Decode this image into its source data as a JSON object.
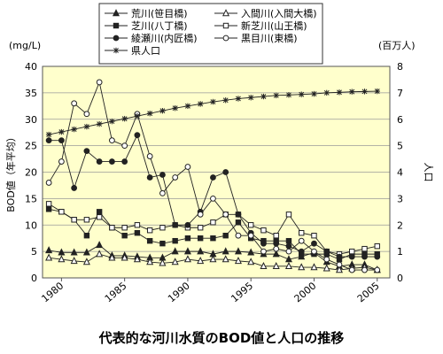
{
  "chart_data": {
    "type": "line",
    "title": "代表的な河川水質のBOD値と人口の推移",
    "y_left_unit": "(mg/L)",
    "y_left_label": "BOD値（年平均）",
    "y_left_ticks": [
      "0",
      "5",
      "10",
      "15",
      "20",
      "25",
      "30",
      "35",
      "40"
    ],
    "y_left_lim": [
      0,
      40
    ],
    "y_right_unit": "(百万人)",
    "y_right_label": "人口",
    "y_right_ticks": [
      "0",
      "1",
      "2",
      "3",
      "4",
      "5",
      "6",
      "7",
      "8"
    ],
    "y_right_lim": [
      0,
      8
    ],
    "x_ticks": [
      "1980",
      "1985",
      "1990",
      "1995",
      "2000",
      "2005"
    ],
    "x_lim": [
      1978.5,
      2006
    ],
    "years": [
      1979,
      1980,
      1981,
      1982,
      1983,
      1984,
      1985,
      1986,
      1987,
      1988,
      1989,
      1990,
      1991,
      1992,
      1993,
      1994,
      1995,
      1996,
      1997,
      1998,
      1999,
      2000,
      2001,
      2002,
      2003,
      2004,
      2005
    ],
    "series": [
      {
        "name": "荒川(笹目橋)",
        "axis": "left",
        "marker": "tri-filled",
        "values": [
          5.2,
          4.8,
          4.8,
          4.8,
          6.2,
          4.2,
          4.2,
          4.0,
          3.8,
          3.8,
          5.0,
          5.0,
          5.0,
          4.5,
          5.0,
          5.0,
          4.8,
          4.5,
          4.5,
          3.5,
          4.0,
          4.8,
          3.0,
          2.2,
          2.5,
          2.5,
          1.5
        ]
      },
      {
        "name": "入間川(入間大橋)",
        "axis": "left",
        "marker": "tri-open",
        "values": [
          3.8,
          3.5,
          3.2,
          3.0,
          4.5,
          3.8,
          3.8,
          3.5,
          3.0,
          2.8,
          3.0,
          3.5,
          3.2,
          3.5,
          3.5,
          3.2,
          3.0,
          2.2,
          2.2,
          2.2,
          2.0,
          2.0,
          1.8,
          1.5,
          1.8,
          2.0,
          1.5
        ]
      },
      {
        "name": "芝川(八丁橋)",
        "axis": "left",
        "marker": "sq-filled",
        "values": [
          13.0,
          12.5,
          11.0,
          8.0,
          12.5,
          9.5,
          8.0,
          8.5,
          7.0,
          6.5,
          7.0,
          7.5,
          7.5,
          7.5,
          8.0,
          10.5,
          7.5,
          7.0,
          7.0,
          7.0,
          4.5,
          4.5,
          4.5,
          3.5,
          4.5,
          4.5,
          4.5
        ]
      },
      {
        "name": "新芝川(山王橋)",
        "axis": "left",
        "marker": "sq-open",
        "values": [
          14.0,
          12.5,
          11.0,
          11.0,
          11.5,
          9.5,
          9.5,
          10.0,
          9.0,
          9.5,
          10.0,
          9.5,
          9.5,
          10.5,
          12.0,
          12.0,
          10.0,
          9.0,
          8.0,
          12.0,
          8.5,
          8.0,
          5.0,
          4.5,
          5.0,
          5.5,
          6.0
        ]
      },
      {
        "name": "綾瀬川(内匠橋)",
        "axis": "left",
        "marker": "circ-filled",
        "values": [
          26.0,
          26.0,
          17.0,
          24.0,
          22.0,
          22.0,
          22.0,
          27.0,
          19.0,
          19.5,
          10.0,
          10.0,
          12.5,
          19.0,
          20.0,
          12.0,
          8.5,
          6.5,
          6.5,
          6.0,
          5.0,
          6.5,
          5.0,
          4.0,
          4.0,
          4.0,
          4.0
        ]
      },
      {
        "name": "黒目川(東橋)",
        "axis": "left",
        "marker": "circ-open",
        "values": [
          18.0,
          22.0,
          33.0,
          31.0,
          37.0,
          26.0,
          25.0,
          31.0,
          23.0,
          16.0,
          19.0,
          21.0,
          12.0,
          15.0,
          12.0,
          8.0,
          8.0,
          5.0,
          5.5,
          5.0,
          7.0,
          5.0,
          3.5,
          2.5,
          1.5,
          1.5,
          1.5
        ]
      },
      {
        "name": "県人口",
        "axis": "right",
        "marker": "star",
        "values": [
          5.42,
          5.52,
          5.62,
          5.72,
          5.82,
          5.92,
          6.02,
          6.12,
          6.22,
          6.32,
          6.42,
          6.5,
          6.58,
          6.66,
          6.72,
          6.78,
          6.82,
          6.86,
          6.9,
          6.92,
          6.94,
          6.96,
          7.0,
          7.02,
          7.04,
          7.05,
          7.06
        ]
      }
    ]
  }
}
